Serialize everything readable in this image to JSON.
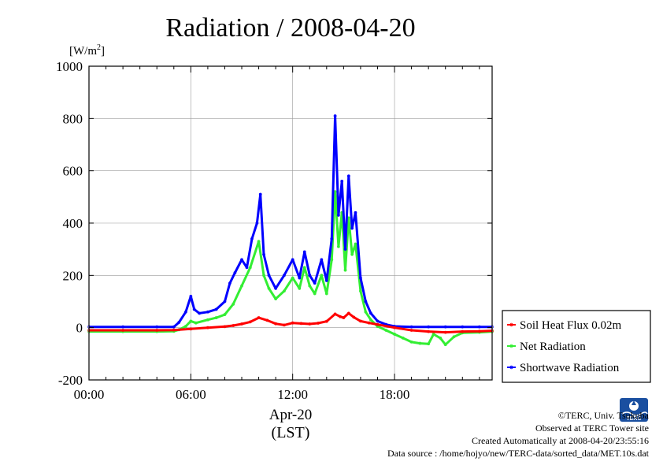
{
  "chart_data": {
    "type": "line",
    "title": "Radiation / 2008-04-20",
    "ylabel": "[W/m",
    "ylabel_sup": "2",
    "ylabel_close": "]",
    "xlabel": "Apr-20",
    "xlabel2": "(LST)",
    "xlim": [
      0,
      23.75
    ],
    "ylim": [
      -200,
      1000
    ],
    "x_ticks": [
      {
        "value": 0,
        "label": "00:00"
      },
      {
        "value": 6,
        "label": "06:00"
      },
      {
        "value": 12,
        "label": "12:00"
      },
      {
        "value": 18,
        "label": "18:00"
      }
    ],
    "y_ticks": [
      {
        "value": -200,
        "label": "-200"
      },
      {
        "value": 0,
        "label": "0"
      },
      {
        "value": 200,
        "label": "200"
      },
      {
        "value": 400,
        "label": "400"
      },
      {
        "value": 600,
        "label": "600"
      },
      {
        "value": 800,
        "label": "800"
      },
      {
        "value": 1000,
        "label": "1000"
      }
    ],
    "grid": true,
    "legend_position": "right",
    "series": [
      {
        "name": "Soil Heat Flux 0.02m",
        "color": "#ff0000",
        "x": [
          0,
          2,
          4,
          5,
          6,
          7,
          8,
          8.5,
          9,
          9.5,
          10,
          10.5,
          11,
          11.5,
          12,
          12.5,
          13,
          13.5,
          14,
          14.5,
          14.8,
          15,
          15.3,
          15.6,
          16,
          16.5,
          17,
          18,
          19,
          20,
          21,
          22,
          23,
          23.75
        ],
        "y": [
          -10,
          -10,
          -10,
          -9,
          -5,
          0,
          4,
          8,
          14,
          22,
          38,
          28,
          15,
          10,
          18,
          16,
          14,
          17,
          24,
          52,
          42,
          38,
          55,
          40,
          25,
          18,
          12,
          0,
          -10,
          -15,
          -18,
          -15,
          -14,
          -12
        ]
      },
      {
        "name": "Net Radiation",
        "color": "#33ee33",
        "x": [
          0,
          2,
          4,
          5,
          5.3,
          5.7,
          6,
          6.3,
          7,
          7.5,
          8,
          8.5,
          9,
          9.5,
          10,
          10.3,
          10.6,
          11,
          11.5,
          12,
          12.4,
          12.7,
          13,
          13.3,
          13.7,
          14,
          14.3,
          14.5,
          14.7,
          14.9,
          15.1,
          15.3,
          15.5,
          15.7,
          16,
          16.3,
          16.6,
          17,
          17.5,
          18,
          18.5,
          19,
          19.5,
          20,
          20.3,
          20.7,
          21,
          21.5,
          22,
          23,
          23.75
        ],
        "y": [
          -15,
          -15,
          -15,
          -14,
          -8,
          5,
          25,
          18,
          30,
          38,
          50,
          90,
          160,
          230,
          330,
          200,
          150,
          110,
          140,
          190,
          150,
          230,
          160,
          130,
          200,
          130,
          260,
          520,
          310,
          440,
          220,
          420,
          280,
          320,
          140,
          60,
          30,
          5,
          -10,
          -25,
          -40,
          -55,
          -60,
          -62,
          -25,
          -40,
          -65,
          -35,
          -20,
          -18,
          -15
        ]
      },
      {
        "name": "Shortwave Radiation",
        "color": "#0000ff",
        "x": [
          0,
          2,
          4,
          5,
          5.3,
          5.7,
          6,
          6.2,
          6.5,
          7,
          7.5,
          8,
          8.3,
          8.6,
          9,
          9.3,
          9.6,
          9.9,
          10.1,
          10.3,
          10.6,
          11,
          11.5,
          12,
          12.4,
          12.7,
          13,
          13.3,
          13.7,
          14,
          14.3,
          14.5,
          14.7,
          14.9,
          15.1,
          15.3,
          15.5,
          15.7,
          16,
          16.3,
          16.6,
          17,
          17.5,
          18,
          19,
          20,
          21,
          22,
          23,
          23.75
        ],
        "y": [
          3,
          3,
          3,
          3,
          20,
          60,
          120,
          70,
          55,
          60,
          70,
          100,
          170,
          210,
          260,
          230,
          340,
          400,
          510,
          280,
          200,
          150,
          200,
          260,
          190,
          290,
          200,
          170,
          260,
          180,
          340,
          810,
          430,
          560,
          300,
          580,
          380,
          440,
          190,
          100,
          55,
          25,
          12,
          5,
          3,
          3,
          3,
          3,
          3,
          3
        ]
      }
    ]
  },
  "credits": {
    "copyright": "©TERC, Univ. Tsukuba",
    "site": "Observed at TERC Tower site",
    "created": "Created Automatically at 2008-04-20/23:55:16",
    "source": "Data source : /home/hojyo/new/TERC-data/sorted_data/MET.10s.dat"
  },
  "logo_text": "TERC"
}
